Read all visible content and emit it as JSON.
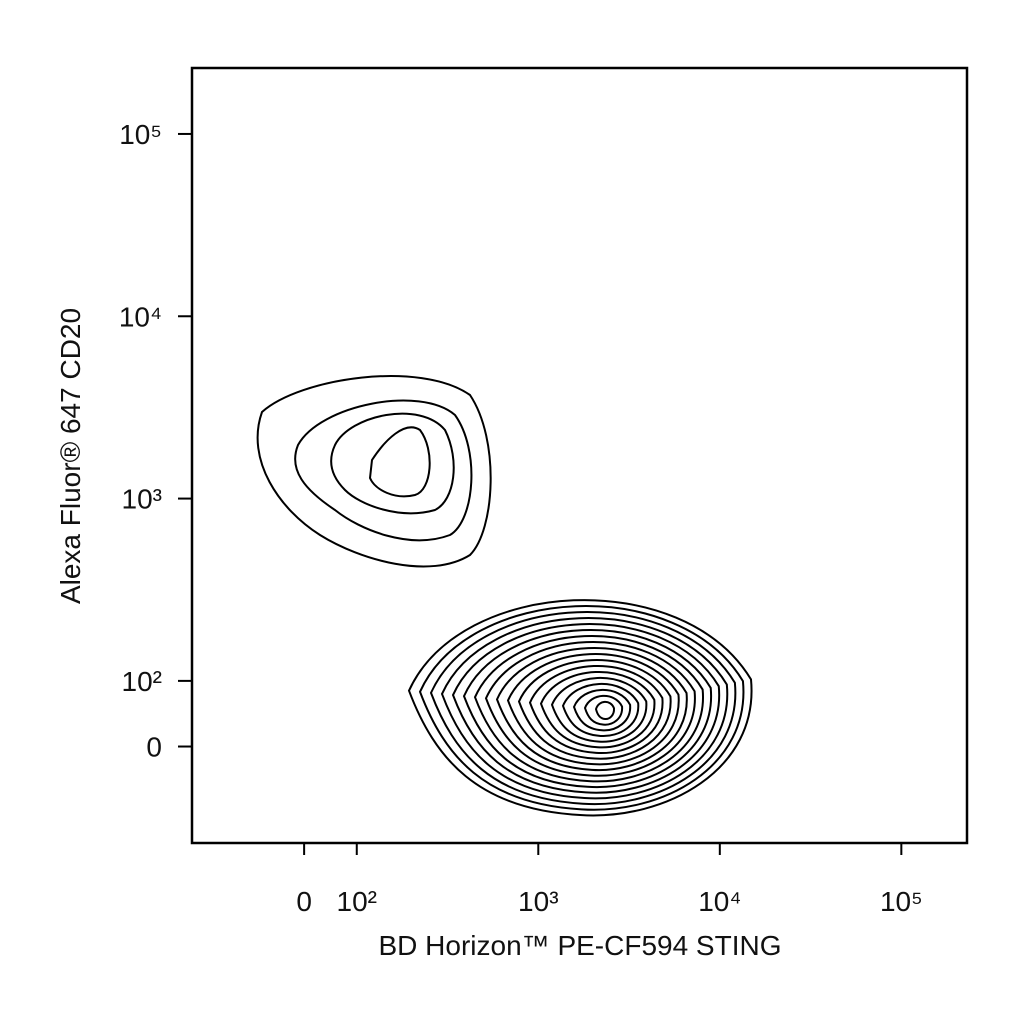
{
  "chart_data": {
    "type": "contour",
    "x_label": "BD Horizon™ PE-CF594 STING",
    "y_label": "Alexa Fluor® 647 CD20",
    "scale": "biexponential",
    "xlim": [
      -213,
      230000
    ],
    "ylim": [
      -147,
      230000
    ],
    "xticks": [
      0,
      {
        "value": 100,
        "label": "10²"
      },
      {
        "value": 1000,
        "label": "10³"
      },
      {
        "value": 10000,
        "label": "10⁴"
      },
      {
        "value": 100000,
        "label": "10⁵"
      }
    ],
    "yticks": [
      0,
      {
        "value": 100,
        "label": "10²"
      },
      {
        "value": 1000,
        "label": "10³"
      },
      {
        "value": 10000,
        "label": "10⁴"
      },
      {
        "value": 100000,
        "label": "10⁵"
      }
    ],
    "color": "#000000"
  }
}
